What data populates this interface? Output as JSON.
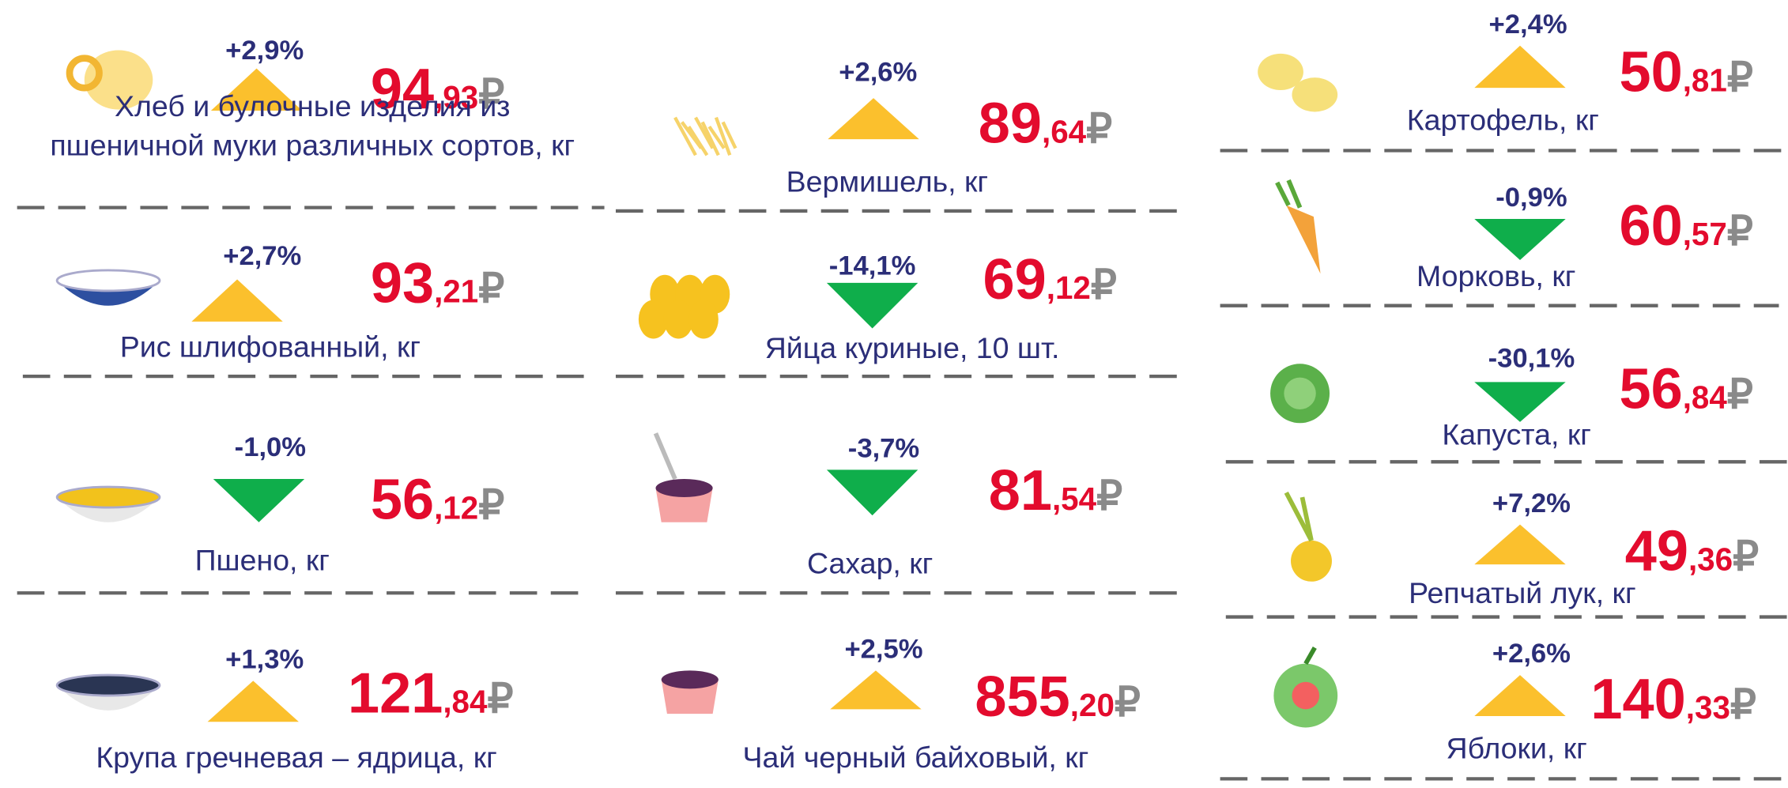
{
  "currency": "₽",
  "columns": [
    {
      "items": [
        {
          "name": [
            "Хлеб и булочные изделия из",
            "пшеничной муки различных сортов, кг"
          ],
          "change": "+2,9%",
          "price_int": "94",
          "price_frac": ",93"
        },
        {
          "name": [
            "Рис шлифованный, кг"
          ],
          "change": "+2,7%",
          "price_int": "93",
          "price_frac": ",21"
        },
        {
          "name": [
            "Пшено, кг"
          ],
          "change": "-1,0%",
          "price_int": "56",
          "price_frac": ",12"
        },
        {
          "name": [
            "Крупа гречневая – ядрица, кг"
          ],
          "change": "+1,3%",
          "price_int": "121",
          "price_frac": ",84"
        }
      ]
    },
    {
      "items": [
        {
          "name": [
            "Вермишель, кг"
          ],
          "change": "+2,6%",
          "price_int": "89",
          "price_frac": ",64"
        },
        {
          "name": [
            "Яйца куриные, 10 шт."
          ],
          "change": "-14,1%",
          "price_int": "69",
          "price_frac": ",12"
        },
        {
          "name": [
            "Сахар, кг"
          ],
          "change": "-3,7%",
          "price_int": "81",
          "price_frac": ",54"
        },
        {
          "name": [
            "Чай черный байховый, кг"
          ],
          "change": "+2,5%",
          "price_int": "855",
          "price_frac": ",20"
        }
      ]
    },
    {
      "items": [
        {
          "name": [
            "Картофель, кг"
          ],
          "change": "+2,4%",
          "price_int": "50",
          "price_frac": ",81"
        },
        {
          "name": [
            "Морковь, кг"
          ],
          "change": "-0,9%",
          "price_int": "60",
          "price_frac": ",57"
        },
        {
          "name": [
            "Капуста, кг"
          ],
          "change": "-30,1%",
          "price_int": "56",
          "price_frac": ",84"
        },
        {
          "name": [
            "Репчатый лук, кг"
          ],
          "change": "+7,2%",
          "price_int": "49",
          "price_frac": ",36"
        },
        {
          "name": [
            "Яблоки, кг"
          ],
          "change": "+2,6%",
          "price_int": "140",
          "price_frac": ",33"
        }
      ]
    }
  ]
}
